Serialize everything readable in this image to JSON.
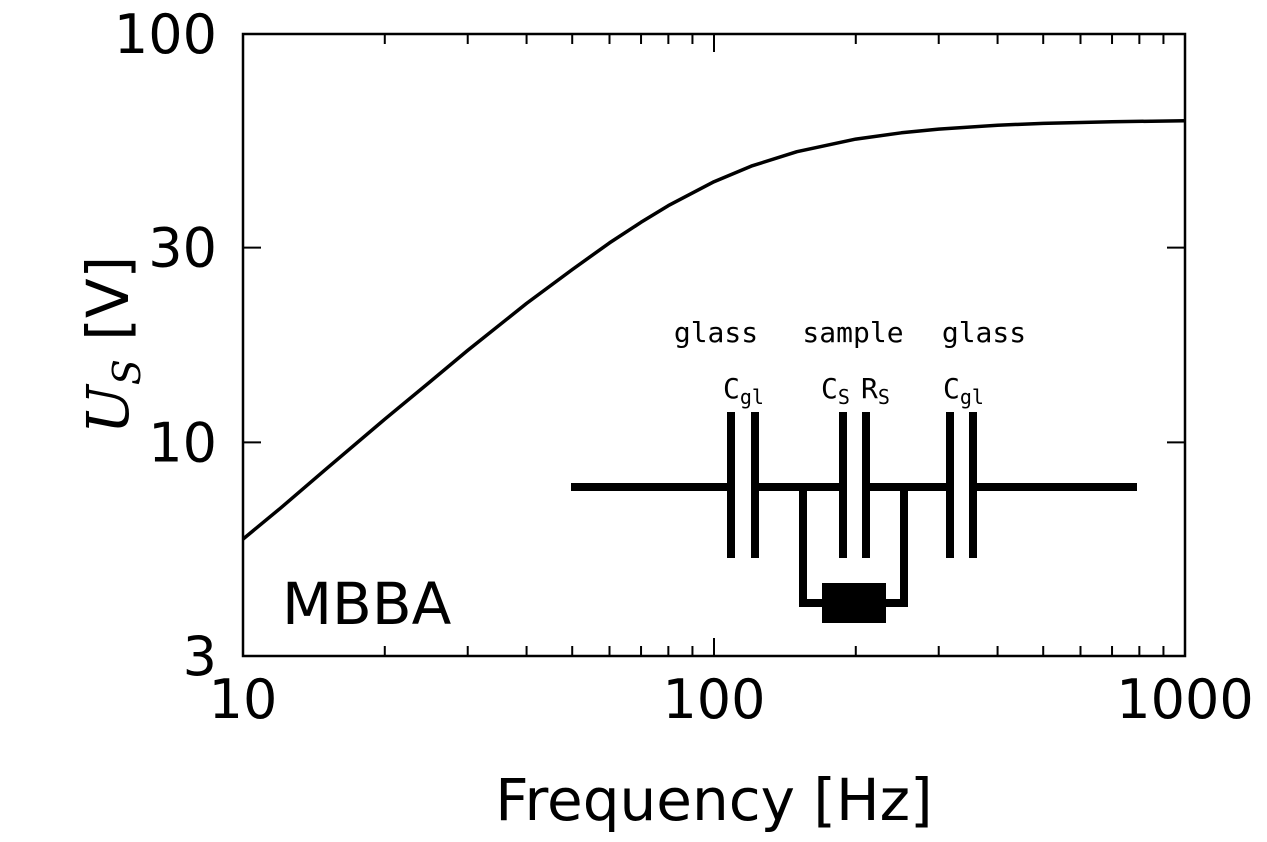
{
  "chart_data": {
    "type": "line",
    "xlabel": "Frequency [Hz]",
    "ylabel": "U_S [V]",
    "ylabel_main": "U",
    "ylabel_sub": "S",
    "ylabel_unit": " [V]",
    "x_scale": "log",
    "y_scale": "log",
    "xlim": [
      10,
      1000
    ],
    "ylim": [
      3,
      100
    ],
    "x_ticks": [
      10,
      100,
      1000
    ],
    "x_tick_labels": [
      "10",
      "100",
      "1000"
    ],
    "y_ticks": [
      3,
      10,
      30,
      100
    ],
    "y_tick_labels": [
      "3",
      "10",
      "30",
      "100"
    ],
    "series": [
      {
        "name": "U_S",
        "x": [
          10,
          12,
          15,
          20,
          25,
          30,
          40,
          50,
          60,
          70,
          80,
          100,
          120,
          150,
          200,
          250,
          300,
          400,
          500,
          700,
          1000
        ],
        "y": [
          5.8,
          6.9,
          8.6,
          11.4,
          14.1,
          16.8,
          21.9,
          26.5,
          30.8,
          34.6,
          38.0,
          43.5,
          47.5,
          51.5,
          55.3,
          57.3,
          58.5,
          59.8,
          60.4,
          61.0,
          61.3
        ]
      }
    ],
    "annotation": "MBBA",
    "inset": {
      "group_labels": [
        "glass",
        "sample",
        "glass"
      ],
      "components": [
        {
          "main": "C",
          "sub": "gl"
        },
        {
          "main": "C",
          "sub": "S"
        },
        {
          "main": "R",
          "sub": "S"
        },
        {
          "main": "C",
          "sub": "gl"
        }
      ]
    }
  }
}
